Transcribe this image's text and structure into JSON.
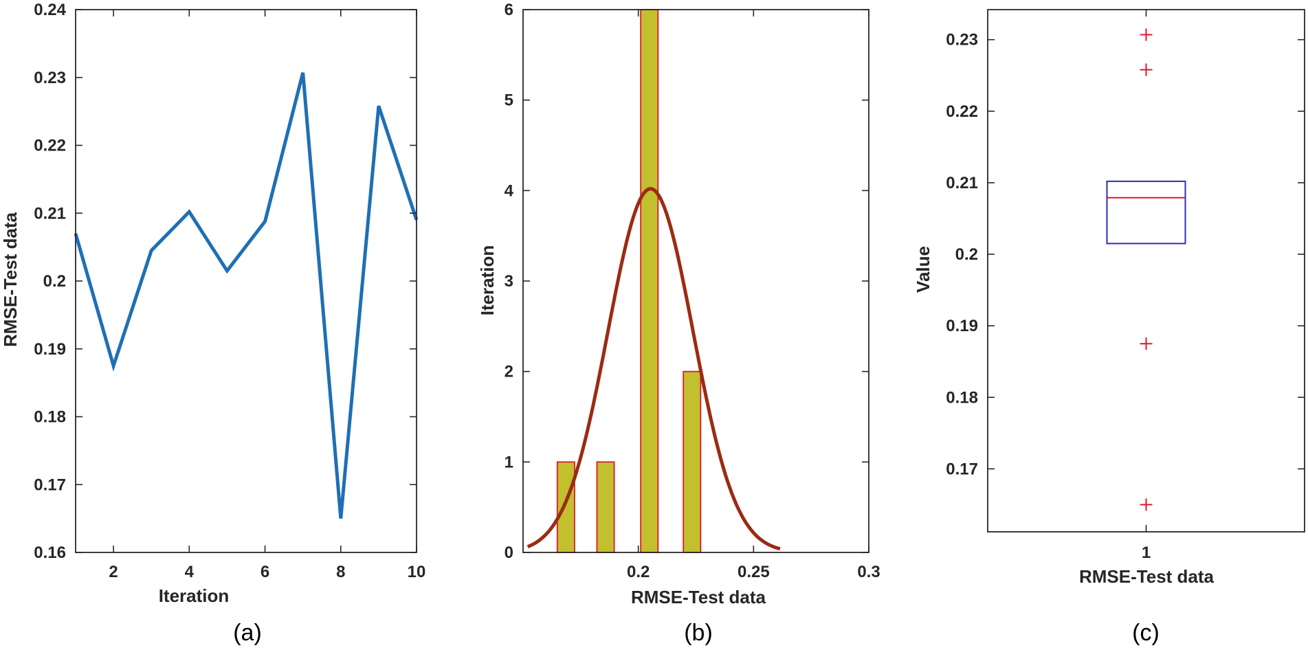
{
  "colors": {
    "line": "#1f6fb4",
    "bar_fill": "#c2c02e",
    "bar_edge": "#e0162b",
    "fit_curve": "#9a2b14",
    "box_edge": "#2b2bb8",
    "median": "#e0162b",
    "outlier": "#e0162b",
    "axes": "#262626"
  },
  "chart_data": [
    {
      "type": "line",
      "caption": "(a)",
      "xlabel": "Iteration",
      "ylabel": "RMSE-Test data",
      "xlim": [
        1,
        10
      ],
      "ylim": [
        0.16,
        0.24
      ],
      "xticks": [
        2,
        4,
        6,
        8,
        10
      ],
      "yticks": [
        0.16,
        0.17,
        0.18,
        0.19,
        0.2,
        0.21,
        0.22,
        0.23,
        0.24
      ],
      "xtick_labels": [
        "2",
        "4",
        "6",
        "8",
        "10"
      ],
      "ytick_labels": [
        "0.16",
        "0.17",
        "0.18",
        "0.19",
        "0.2",
        "0.21",
        "0.22",
        "0.23",
        "0.24"
      ],
      "x": [
        1,
        2,
        3,
        4,
        5,
        6,
        7,
        8,
        9,
        10
      ],
      "y": [
        0.207,
        0.1875,
        0.2045,
        0.2102,
        0.2015,
        0.2088,
        0.2307,
        0.165,
        0.2258,
        0.209
      ]
    },
    {
      "type": "bar",
      "subtype": "histogram with normal fit",
      "caption": "(b)",
      "xlabel": "RMSE-Test data",
      "ylabel": "Iteration",
      "xlim": [
        0.15,
        0.3
      ],
      "ylim": [
        0,
        6
      ],
      "xticks": [
        0.2,
        0.25,
        0.3
      ],
      "yticks": [
        0,
        1,
        2,
        3,
        4,
        5,
        6
      ],
      "xtick_labels": [
        "0.2",
        "0.25",
        "0.3"
      ],
      "ytick_labels": [
        "0",
        "1",
        "2",
        "3",
        "4",
        "5",
        "6"
      ],
      "bin_centers": [
        0.1686,
        0.1858,
        0.2048,
        0.2233
      ],
      "bin_width": 0.0075,
      "values": [
        1,
        1,
        6,
        2
      ],
      "fit": {
        "mean": 0.2053,
        "sd": 0.0185,
        "peak": 4.02,
        "x_range": [
          0.152,
          0.2615
        ]
      }
    },
    {
      "type": "box",
      "caption": "(c)",
      "xlabel": "RMSE-Test data",
      "ylabel": "Value",
      "categories": [
        "1"
      ],
      "ylim": [
        0.1612,
        0.2342
      ],
      "yticks": [
        0.17,
        0.18,
        0.19,
        0.2,
        0.21,
        0.22,
        0.23
      ],
      "ytick_labels": [
        "0.17",
        "0.18",
        "0.19",
        "0.2",
        "0.21",
        "0.22",
        "0.23"
      ],
      "q1": 0.2015,
      "median": 0.2079,
      "q3": 0.2102,
      "whisker_low": 0.2015,
      "whisker_high": 0.2102,
      "outliers": [
        0.2307,
        0.2258,
        0.1875,
        0.165
      ]
    }
  ]
}
